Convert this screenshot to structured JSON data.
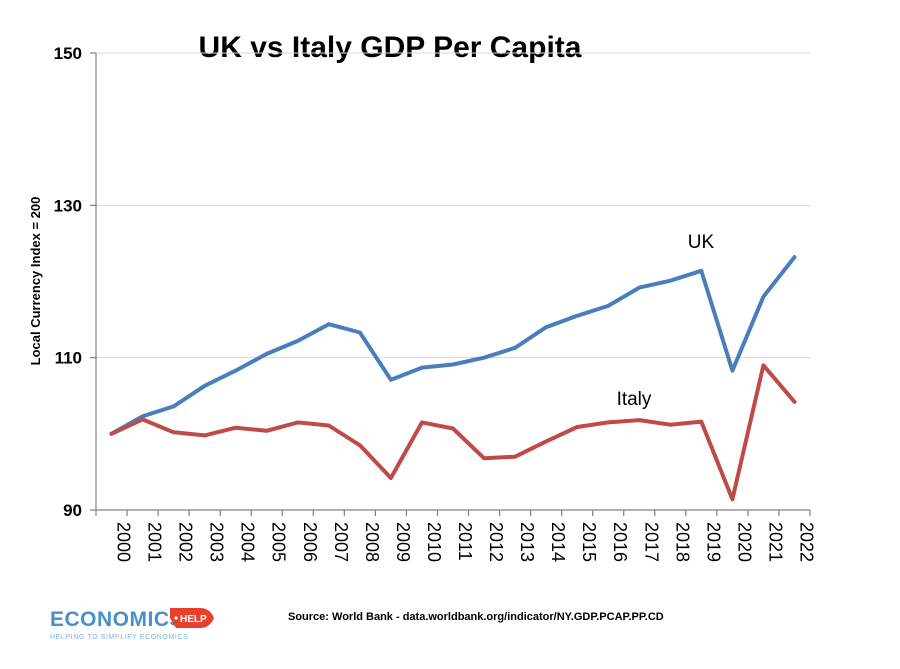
{
  "chart_data": {
    "type": "line",
    "title": "UK vs Italy GDP Per Capita",
    "xlabel": "",
    "ylabel": "Local Currency Index = 200",
    "categories": [
      "2000",
      "2001",
      "2002",
      "2003",
      "2004",
      "2005",
      "2006",
      "2007",
      "2008",
      "2009",
      "2010",
      "2011",
      "2012",
      "2013",
      "2014",
      "2015",
      "2016",
      "2017",
      "2018",
      "2019",
      "2020",
      "2021",
      "2022"
    ],
    "yticks": [
      90,
      110,
      130,
      150
    ],
    "ylim": [
      90,
      150
    ],
    "grid": true,
    "series": [
      {
        "name": "UK",
        "color": "#4a7ebb",
        "values": [
          100.0,
          102.3,
          103.6,
          106.3,
          108.3,
          110.5,
          112.2,
          114.4,
          113.3,
          107.1,
          108.7,
          109.1,
          110.0,
          111.3,
          114.0,
          115.5,
          116.8,
          119.2,
          120.1,
          121.4,
          108.3,
          118.0,
          123.2
        ]
      },
      {
        "name": "Italy",
        "color": "#be4b48",
        "values": [
          100.0,
          101.9,
          100.2,
          99.8,
          100.8,
          100.4,
          101.5,
          101.1,
          98.5,
          94.2,
          101.5,
          100.7,
          96.8,
          97.0,
          99.0,
          100.9,
          101.5,
          101.8,
          101.2,
          101.6,
          91.4,
          109.0,
          104.2
        ]
      }
    ],
    "source": "Source: World Bank - data.worldbank.org/indicator/NY.GDP.PCAP.PP.CD"
  },
  "logo": {
    "name": "ECONOMICS",
    "badge": "HELP",
    "tagline": "HELPING TO SIMPLIFY ECONOMICS",
    "color": "#4a90c8",
    "badge_color": "#e8402a"
  }
}
